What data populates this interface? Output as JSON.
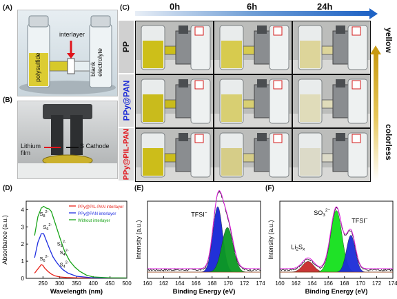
{
  "panels": {
    "A": {
      "label": "(A)",
      "annotations": {
        "polysulfide": "polysulfide",
        "interlayer": "interlayer",
        "blank": "blank\nelectrolyte"
      }
    },
    "B": {
      "label": "(B)",
      "annotations": {
        "lithium": "Lithium\nfilm",
        "cathode": "S Cathode"
      }
    },
    "C": {
      "label": "(C)",
      "columns": [
        "0h",
        "6h",
        "24h"
      ],
      "rows": [
        {
          "name": "PP",
          "color": "#111111"
        },
        {
          "name": "PPy@PAN",
          "color": "#1a2ad6"
        },
        {
          "name": "PPy@PIL-PAN",
          "color": "#e0141b"
        }
      ],
      "side_top": "yellow",
      "side_bottom": "colorless",
      "liquid": {
        "PP": [
          "#cdbf19",
          "#d7cb4e",
          "#ddd59a"
        ],
        "PPy@PAN": [
          "#c9bb1c",
          "#d8cf72",
          "#e0dcba"
        ],
        "PPy@PIL-PAN": [
          "#ccbd1a",
          "#d6cd88",
          "#dcdac8"
        ]
      }
    }
  },
  "chart_data": [
    {
      "id": "D",
      "label": "(D)",
      "type": "line",
      "xlabel": "Wavelength (nm)",
      "ylabel": "Absorbance (a.u.)",
      "xlim": [
        200,
        500
      ],
      "ylim": [
        0,
        4.5
      ],
      "xticks": [
        250,
        300,
        350,
        400,
        450,
        500
      ],
      "yticks": [
        0,
        1,
        2,
        3,
        4
      ],
      "series": [
        {
          "name": "PPy@PIL-PAN interlayer",
          "color": "#e8231a",
          "x": [
            225,
            235,
            245,
            250,
            255,
            265,
            275,
            285,
            300,
            320,
            350,
            400,
            450,
            500
          ],
          "y": [
            0.3,
            0.55,
            0.8,
            0.75,
            0.6,
            0.4,
            0.25,
            0.15,
            0.08,
            0.05,
            0.03,
            0.02,
            0.02,
            0.02
          ]
        },
        {
          "name": "PPy@PAN interlayer",
          "color": "#1f2ee0",
          "x": [
            225,
            235,
            245,
            252,
            260,
            270,
            280,
            290,
            300,
            310,
            325,
            350,
            400,
            450,
            500
          ],
          "y": [
            1.2,
            2.1,
            2.6,
            2.6,
            2.2,
            1.7,
            1.25,
            0.95,
            0.7,
            0.5,
            0.3,
            0.12,
            0.03,
            0.02,
            0.02
          ]
        },
        {
          "name": "Without interlayer",
          "color": "#17a317",
          "x": [
            225,
            235,
            245,
            252,
            260,
            268,
            275,
            285,
            295,
            305,
            315,
            330,
            345,
            360,
            380,
            400,
            450,
            500
          ],
          "y": [
            2.5,
            3.6,
            4.1,
            4.2,
            4.1,
            4.05,
            3.9,
            3.3,
            2.7,
            2.1,
            1.55,
            1.0,
            0.65,
            0.4,
            0.18,
            0.08,
            0.03,
            0.02
          ]
        }
      ],
      "annotations": [
        {
          "base": "S",
          "sub": "8",
          "sup": "2-",
          "x": 240,
          "y": 3.65
        },
        {
          "base": "S",
          "sub": "6",
          "sup": "2-",
          "x": 250,
          "y": 2.9
        },
        {
          "base": "S",
          "sub": "4",
          "sup": "2-",
          "x": 292,
          "y": 1.9
        },
        {
          "base": "S",
          "sub": "4",
          "sup": "2-",
          "x": 300,
          "y": 1.4
        },
        {
          "base": "S",
          "sub": "4",
          "sup": "2-",
          "x": 300,
          "y": 0.7
        },
        {
          "base": "S",
          "sub": "6",
          "sup": "2-",
          "x": 240,
          "y": 1.05
        }
      ]
    },
    {
      "id": "E",
      "label": "(E)",
      "type": "area",
      "xlabel": "Binding Energy (eV)",
      "ylabel": "Intensity (a.u.)",
      "xlim": [
        160,
        174
      ],
      "xticks": [
        160,
        162,
        164,
        166,
        168,
        170,
        172,
        174
      ],
      "annotations": [
        {
          "text": "TFSI",
          "sup": "−",
          "x": 165.4,
          "y": 0.8
        }
      ],
      "peaks": [
        {
          "color": "#1525d6",
          "center": 168.7,
          "width": 0.6,
          "height": 0.85
        },
        {
          "color": "#0c9a22",
          "center": 169.9,
          "width": 0.7,
          "height": 0.58
        }
      ]
    },
    {
      "id": "F",
      "label": "(F)",
      "type": "area",
      "xlabel": "Binding Energy (eV)",
      "ylabel": "Intensity (a.u.)",
      "xlim": [
        160,
        174
      ],
      "xticks": [
        160,
        162,
        164,
        166,
        168,
        170,
        172,
        174
      ],
      "annotations": [
        {
          "text": "Li",
          "sub": "2",
          "text2": "S",
          "sub2": "x",
          "x": 161.4,
          "y": 0.38
        },
        {
          "text": "SO",
          "sub": "3",
          "sup": "2−",
          "x": 164.2,
          "y": 0.82
        },
        {
          "text": "TFSI",
          "sup": "−",
          "x": 168.9,
          "y": 0.72
        }
      ],
      "peaks": [
        {
          "color": "#c72a2a",
          "center": 163.5,
          "width": 0.7,
          "height": 0.14
        },
        {
          "color": "#13e01b",
          "center": 167.0,
          "width": 0.7,
          "height": 0.8
        },
        {
          "color": "#1b2bd8",
          "center": 168.8,
          "width": 0.55,
          "height": 0.48
        }
      ]
    }
  ]
}
